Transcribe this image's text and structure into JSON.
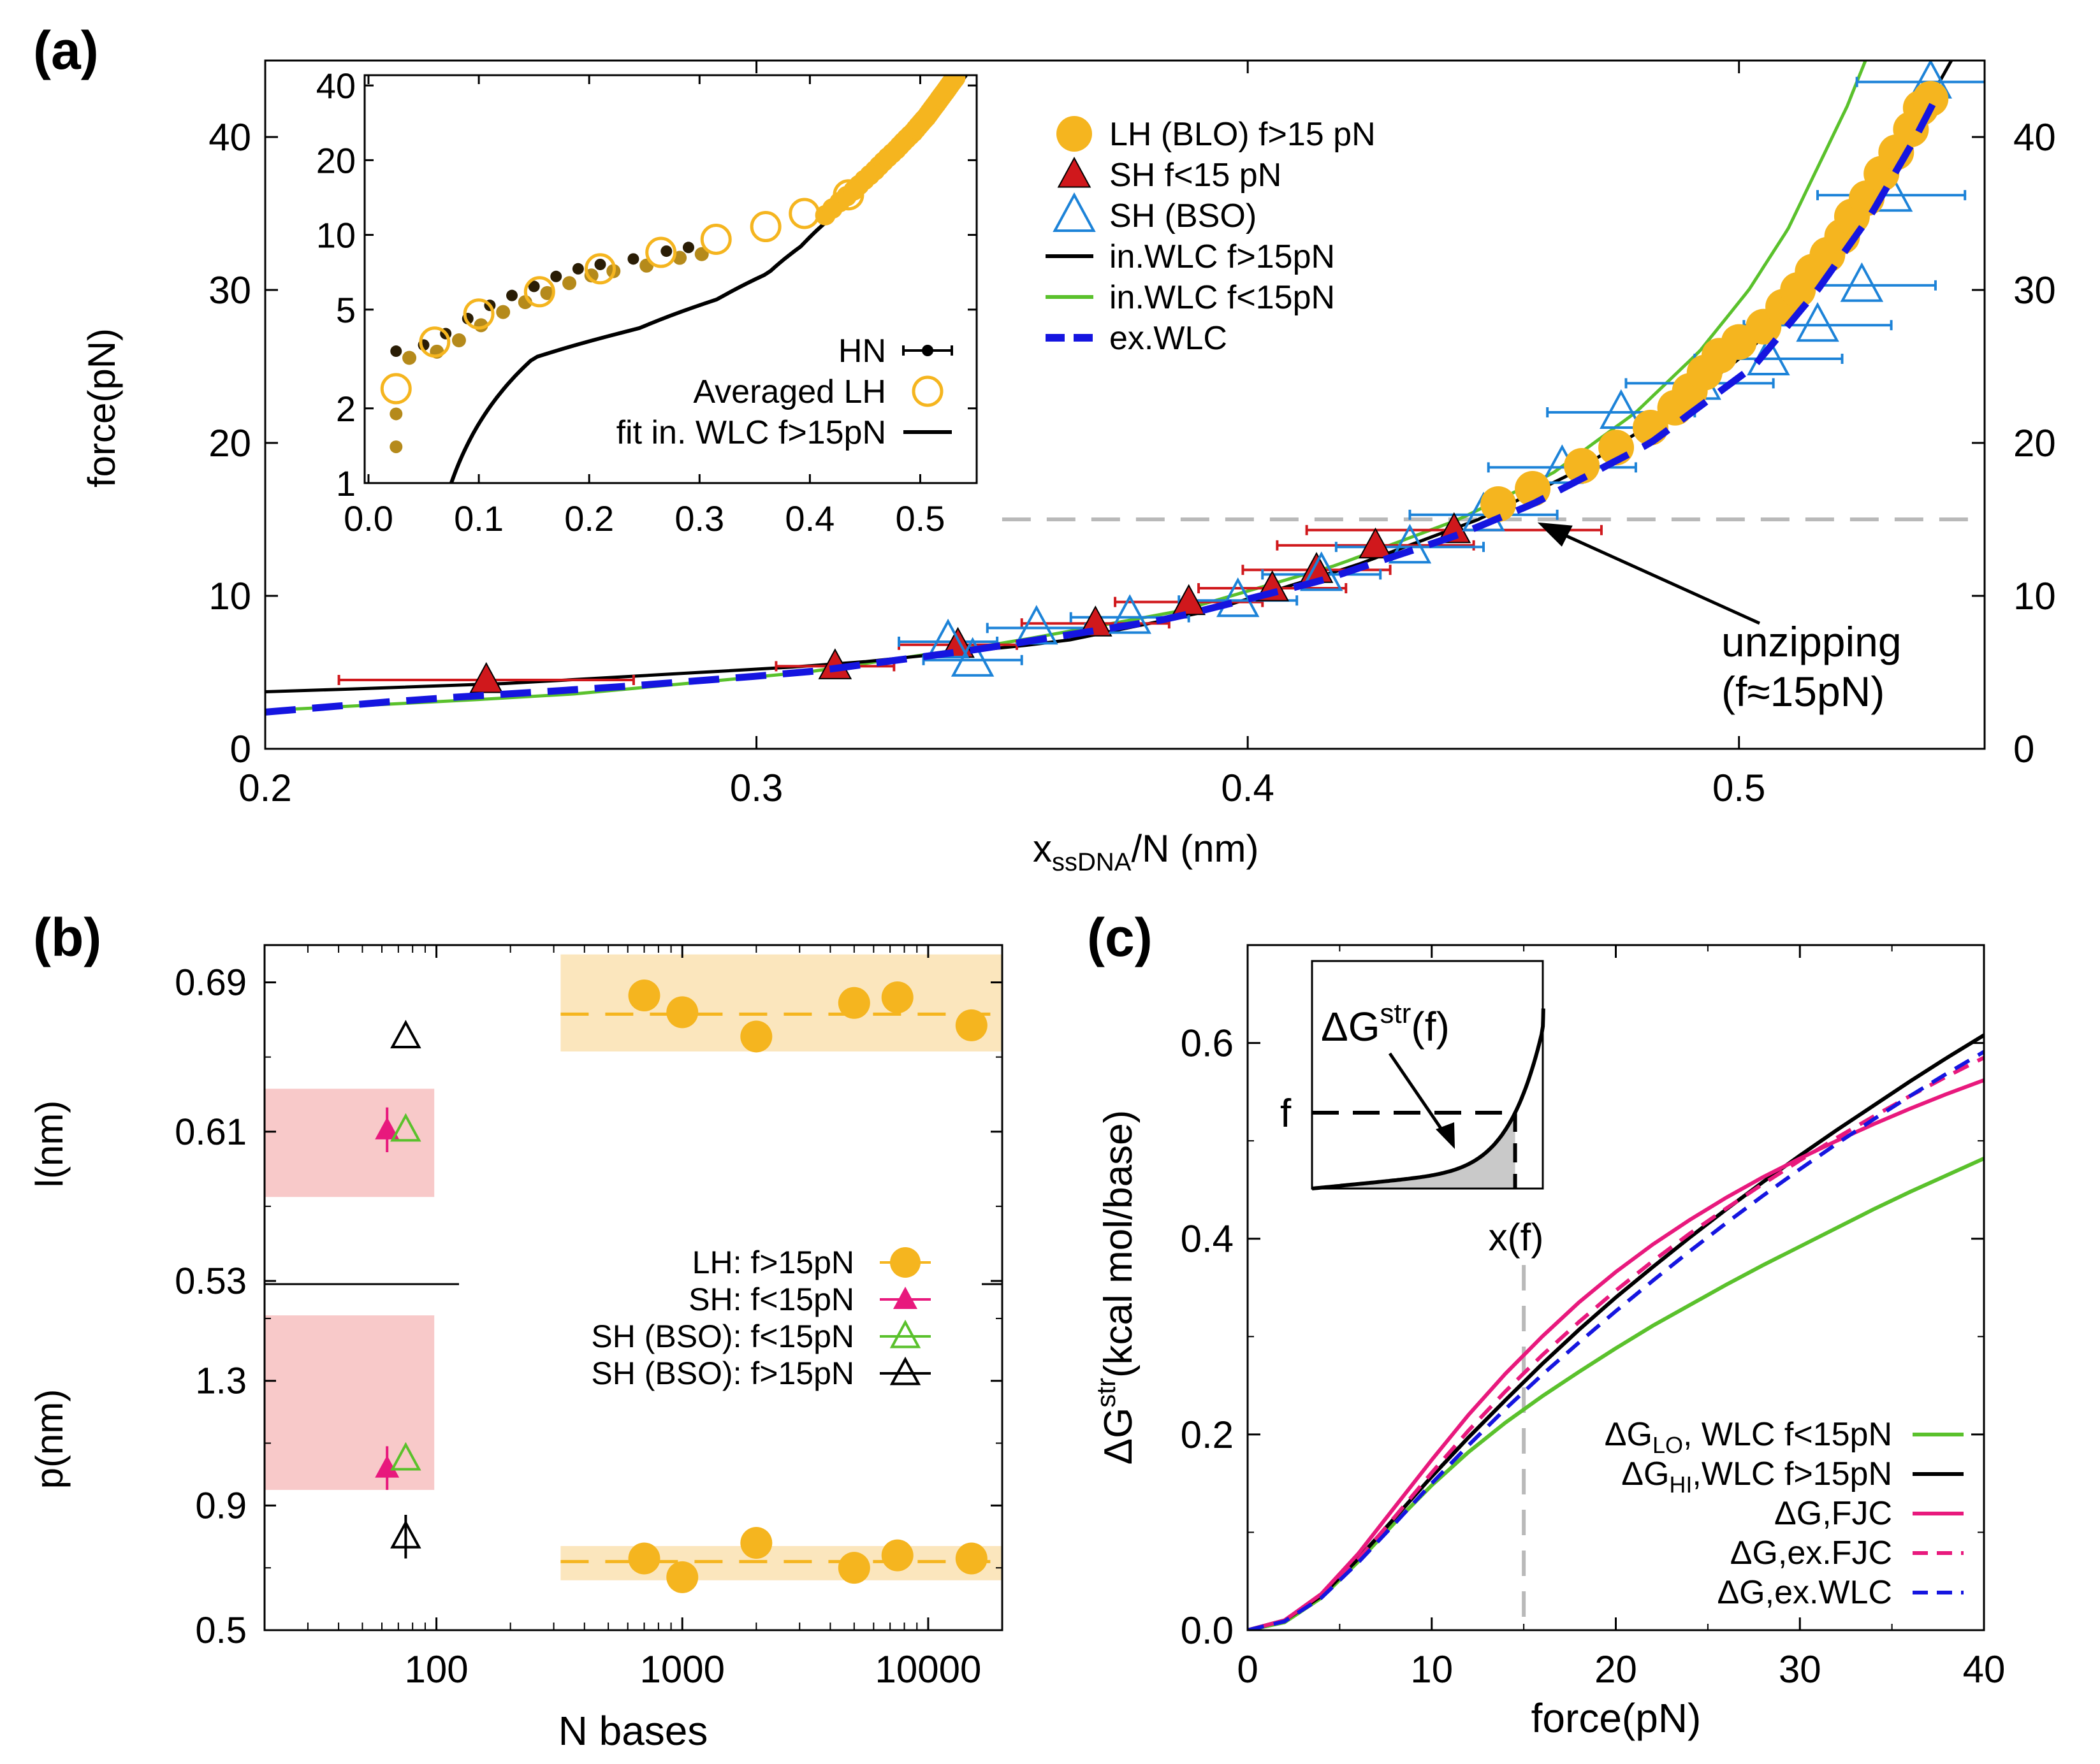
{
  "panel_labels": {
    "a": "(a)",
    "b": "(b)",
    "c": "(c)"
  },
  "chart_data": [
    {
      "id": "a",
      "type": "scatter",
      "xlabel": "x",
      "xlabel_sub": "ssDNA",
      "xlabel_rest": "/N (nm)",
      "ylabel": "force(pN)",
      "xlim": [
        0.2,
        0.55
      ],
      "ylim": [
        0,
        45
      ],
      "xticks": [
        0.2,
        0.3,
        0.4,
        0.5
      ],
      "xtick_labels": [
        "0.2",
        "0.3",
        "0.4",
        "0.5"
      ],
      "yticks": [
        0,
        10,
        20,
        30,
        40
      ],
      "ytick_labels": [
        "0",
        "10",
        "20",
        "30",
        "40"
      ],
      "y2tick_labels": [
        "0",
        "10",
        "20",
        "30",
        "40"
      ],
      "reference_line_y": 15,
      "annotation": {
        "line1": "unzipping",
        "line2": "(f≈15pN)",
        "x": 0.459,
        "y": 14.8
      },
      "legend": [
        "LH (BLO) f>15 pN",
        "SH f<15 pN",
        "SH (BSO)",
        "in.WLC f>15pN",
        "in.WLC f<15pN",
        "ex.WLC"
      ],
      "series": [
        {
          "name": "LH (BLO) f>15 pN",
          "color": "#f5b51f",
          "points": [
            [
              0.451,
              16.0
            ],
            [
              0.458,
              17.0
            ],
            [
              0.468,
              18.5
            ],
            [
              0.475,
              19.7
            ],
            [
              0.482,
              21.0
            ],
            [
              0.487,
              22.3
            ],
            [
              0.49,
              23.4
            ],
            [
              0.493,
              24.6
            ],
            [
              0.496,
              25.7
            ],
            [
              0.5,
              26.6
            ],
            [
              0.505,
              27.6
            ],
            [
              0.509,
              28.9
            ],
            [
              0.512,
              30.0
            ],
            [
              0.515,
              31.2
            ],
            [
              0.518,
              32.3
            ],
            [
              0.521,
              33.5
            ],
            [
              0.523,
              34.8
            ],
            [
              0.526,
              36.0
            ],
            [
              0.529,
              37.6
            ],
            [
              0.532,
              39.0
            ],
            [
              0.535,
              40.5
            ],
            [
              0.537,
              41.9
            ],
            [
              0.539,
              42.5
            ]
          ]
        },
        {
          "name": "SH f<15 pN",
          "color": "#d0181c",
          "points": [
            [
              0.245,
              4.5
            ],
            [
              0.316,
              5.4
            ],
            [
              0.341,
              6.8
            ],
            [
              0.369,
              8.2
            ],
            [
              0.388,
              9.6
            ],
            [
              0.405,
              10.5
            ],
            [
              0.414,
              11.7
            ],
            [
              0.426,
              13.3
            ],
            [
              0.442,
              14.3
            ]
          ],
          "xerr": [
            0.03,
            0.012,
            0.012,
            0.015,
            0.015,
            0.015,
            0.015,
            0.02,
            0.03
          ]
        },
        {
          "name": "SH (BSO)",
          "color": "#1d83d8",
          "points": [
            [
              0.339,
              7.0
            ],
            [
              0.344,
              5.8
            ],
            [
              0.357,
              7.9
            ],
            [
              0.376,
              8.6
            ],
            [
              0.398,
              9.7
            ],
            [
              0.415,
              11.4
            ],
            [
              0.433,
              13.2
            ],
            [
              0.448,
              15.3
            ],
            [
              0.464,
              18.4
            ],
            [
              0.476,
              22.0
            ],
            [
              0.492,
              23.9
            ],
            [
              0.506,
              25.5
            ],
            [
              0.516,
              27.7
            ],
            [
              0.525,
              30.3
            ],
            [
              0.531,
              36.2
            ],
            [
              0.539,
              43.6
            ]
          ],
          "xerr": [
            0.01,
            0.01,
            0.01,
            0.012,
            0.012,
            0.012,
            0.015,
            0.015,
            0.015,
            0.015,
            0.015,
            0.015,
            0.015,
            0.015,
            0.015,
            0.015
          ]
        },
        {
          "name": "in.WLC f>15pN",
          "color": "#000000"
        },
        {
          "name": "in.WLC f<15pN",
          "color": "#5ac12c"
        },
        {
          "name": "ex.WLC",
          "color": "#1515e0"
        }
      ],
      "inset": {
        "xlim": [
          0,
          0.55
        ],
        "ylim_log": [
          1,
          44
        ],
        "xtick_labels": [
          "0.0",
          "0.1",
          "0.2",
          "0.3",
          "0.4",
          "0.5"
        ],
        "ytick_labels": [
          "1",
          "2",
          "5",
          "10",
          "20",
          "40"
        ],
        "legend": [
          "HN",
          "Averaged LH",
          "fit in. WLC f>15pN"
        ],
        "series": [
          {
            "name": "HN",
            "color": "#000000",
            "points": [
              [
                0.025,
                3.4
              ],
              [
                0.05,
                3.6
              ],
              [
                0.07,
                4.0
              ],
              [
                0.09,
                4.6
              ],
              [
                0.11,
                5.2
              ],
              [
                0.13,
                5.7
              ],
              [
                0.15,
                6.2
              ],
              [
                0.17,
                6.8
              ],
              [
                0.19,
                7.3
              ],
              [
                0.21,
                7.6
              ],
              [
                0.24,
                8.0
              ],
              [
                0.27,
                8.6
              ],
              [
                0.29,
                8.9
              ]
            ]
          },
          {
            "name": "Averaged LH",
            "color": "#f5b51f",
            "points": [
              [
                0.025,
                2.4
              ],
              [
                0.06,
                3.7
              ],
              [
                0.1,
                4.8
              ],
              [
                0.155,
                5.9
              ],
              [
                0.21,
                7.3
              ],
              [
                0.265,
                8.5
              ],
              [
                0.315,
                9.6
              ],
              [
                0.36,
                10.8
              ],
              [
                0.395,
                12.2
              ],
              [
                0.435,
                14.5
              ]
            ]
          },
          {
            "name": "fit in. WLC f>15pN",
            "color": "#000000"
          }
        ]
      }
    },
    {
      "id": "b",
      "type": "scatter",
      "xlabel": "N bases",
      "ylabel_top": "l(nm)",
      "ylabel_bottom": "p(nm)",
      "x_scale": "log",
      "xlim": [
        20,
        20000
      ],
      "xtick_labels": [
        "100",
        "1000",
        "10000"
      ],
      "top": {
        "ylim": [
          0.53,
          0.71
        ],
        "ytick_labels": [
          "0.53",
          "0.61",
          "0.69"
        ],
        "LH_band": [
          0.653,
          0.705
        ],
        "SH_band": [
          0.575,
          0.633
        ],
        "LH_mean": 0.673,
        "series": [
          {
            "name": "LH: f>15pN",
            "points": [
              [
                700,
                0.683
              ],
              [
                1000,
                0.674
              ],
              [
                2000,
                0.661
              ],
              [
                5000,
                0.679
              ],
              [
                7500,
                0.682
              ],
              [
                15000,
                0.667
              ]
            ]
          },
          {
            "name": "SH: f<15pN",
            "points": [
              [
                63,
                0.611
              ]
            ],
            "yerr": [
              0.012
            ]
          },
          {
            "name": "SH (BSO): f<15pN",
            "points": [
              [
                75,
                0.611
              ]
            ]
          },
          {
            "name": "SH (BSO): f>15pN",
            "points": [
              [
                75,
                0.661
              ]
            ]
          }
        ]
      },
      "bottom": {
        "ylim": [
          0.5,
          1.6
        ],
        "ytick_labels": [
          "0.5",
          "0.9",
          "1.3"
        ],
        "LH_band": [
          0.66,
          0.77
        ],
        "SH_band": [
          0.95,
          1.51
        ],
        "LH_mean": 0.72,
        "series": [
          {
            "name": "LH: f>15pN",
            "points": [
              [
                700,
                0.73
              ],
              [
                1000,
                0.67
              ],
              [
                2000,
                0.78
              ],
              [
                5000,
                0.7
              ],
              [
                7500,
                0.74
              ],
              [
                15000,
                0.73
              ]
            ]
          },
          {
            "name": "SH: f<15pN",
            "points": [
              [
                63,
                1.02
              ]
            ],
            "yerr": [
              0.07
            ]
          },
          {
            "name": "SH (BSO): f<15pN",
            "points": [
              [
                75,
                1.05
              ]
            ]
          },
          {
            "name": "SH (BSO): f>15pN",
            "points": [
              [
                75,
                0.8
              ]
            ],
            "yerr": [
              0.07
            ]
          }
        ]
      },
      "legend": [
        "LH: f>15pN",
        "SH: f<15pN",
        "SH (BSO): f<15pN",
        "SH (BSO): f>15pN"
      ],
      "colors": {
        "LH": "#f5b51f",
        "SH": "#e8197d",
        "BSO_low": "#5ac12c",
        "BSO_high": "#000000",
        "LH_band": "#fbe6bd",
        "SH_band": "#f8c9c9"
      }
    },
    {
      "id": "c",
      "type": "line",
      "xlabel": "force(pN)",
      "ylabel_prefix": "ΔG",
      "ylabel_sup": "str",
      "ylabel_suffix": "(kcal mol/base)",
      "xlim": [
        0,
        40
      ],
      "ylim": [
        0,
        0.7
      ],
      "xtick_labels": [
        "0",
        "10",
        "20",
        "30",
        "40"
      ],
      "ytick_labels": [
        "0.0",
        "0.2",
        "0.4",
        "0.6"
      ],
      "reference_line_x": 15,
      "reference_label": "x(f)",
      "inset_labels": {
        "dg": "ΔG",
        "sup": "str",
        "arg": "(f)",
        "f": "f"
      },
      "legend": [
        {
          "main": "ΔG",
          "sub": "LO",
          "rest": ", WLC f<15pN"
        },
        {
          "main": "ΔG",
          "sub": "HI",
          "rest": ",WLC f>15pN"
        },
        {
          "main": "ΔG,FJC",
          "sub": "",
          "rest": ""
        },
        {
          "main": "ΔG,ex.FJC",
          "sub": "",
          "rest": ""
        },
        {
          "main": "ΔG,ex.WLC",
          "sub": "",
          "rest": ""
        }
      ],
      "series": [
        {
          "name": "ΔG_LO, WLC f<15pN",
          "color": "#5ac12c",
          "dash": false,
          "x": [
            0,
            2,
            4,
            6,
            8,
            10,
            12,
            14,
            16,
            18,
            20,
            22,
            24,
            26,
            28,
            30,
            32,
            34,
            36,
            38,
            40
          ],
          "y": [
            0,
            0.008,
            0.033,
            0.07,
            0.11,
            0.148,
            0.182,
            0.212,
            0.239,
            0.264,
            0.288,
            0.311,
            0.332,
            0.353,
            0.373,
            0.392,
            0.411,
            0.43,
            0.448,
            0.465,
            0.482
          ]
        },
        {
          "name": "ΔG_HI,WLC f>15pN",
          "color": "#000000",
          "dash": false,
          "x": [
            0,
            2,
            4,
            6,
            8,
            10,
            12,
            14,
            16,
            18,
            20,
            22,
            24,
            26,
            28,
            30,
            32,
            34,
            36,
            38,
            40
          ],
          "y": [
            0,
            0.01,
            0.035,
            0.073,
            0.115,
            0.157,
            0.197,
            0.235,
            0.272,
            0.307,
            0.34,
            0.371,
            0.401,
            0.43,
            0.458,
            0.485,
            0.511,
            0.536,
            0.561,
            0.585,
            0.608
          ]
        },
        {
          "name": "ΔG,FJC",
          "color": "#e8197d",
          "dash": false,
          "x": [
            0,
            2,
            4,
            6,
            8,
            10,
            12,
            14,
            16,
            18,
            20,
            22,
            24,
            26,
            28,
            30,
            32,
            34,
            36,
            38,
            40
          ],
          "y": [
            0,
            0.01,
            0.037,
            0.078,
            0.126,
            0.174,
            0.22,
            0.262,
            0.3,
            0.335,
            0.366,
            0.394,
            0.419,
            0.442,
            0.463,
            0.482,
            0.5,
            0.517,
            0.533,
            0.548,
            0.562
          ]
        },
        {
          "name": "ΔG,ex.FJC",
          "color": "#e8197d",
          "dash": true,
          "x": [
            0,
            2,
            4,
            6,
            8,
            10,
            12,
            14,
            16,
            18,
            20,
            22,
            24,
            26,
            28,
            30,
            32,
            34,
            36,
            38,
            40
          ],
          "y": [
            0,
            0.009,
            0.034,
            0.072,
            0.116,
            0.161,
            0.204,
            0.244,
            0.281,
            0.315,
            0.347,
            0.377,
            0.405,
            0.431,
            0.456,
            0.48,
            0.503,
            0.525,
            0.546,
            0.566,
            0.585
          ]
        },
        {
          "name": "ΔG,ex.WLC",
          "color": "#1515e0",
          "dash": true,
          "x": [
            0,
            2,
            4,
            6,
            8,
            10,
            12,
            14,
            16,
            18,
            20,
            22,
            24,
            26,
            28,
            30,
            32,
            34,
            36,
            38,
            40
          ],
          "y": [
            0,
            0.009,
            0.033,
            0.069,
            0.109,
            0.15,
            0.189,
            0.226,
            0.261,
            0.294,
            0.326,
            0.357,
            0.387,
            0.416,
            0.444,
            0.471,
            0.497,
            0.522,
            0.546,
            0.569,
            0.591
          ]
        }
      ]
    }
  ]
}
